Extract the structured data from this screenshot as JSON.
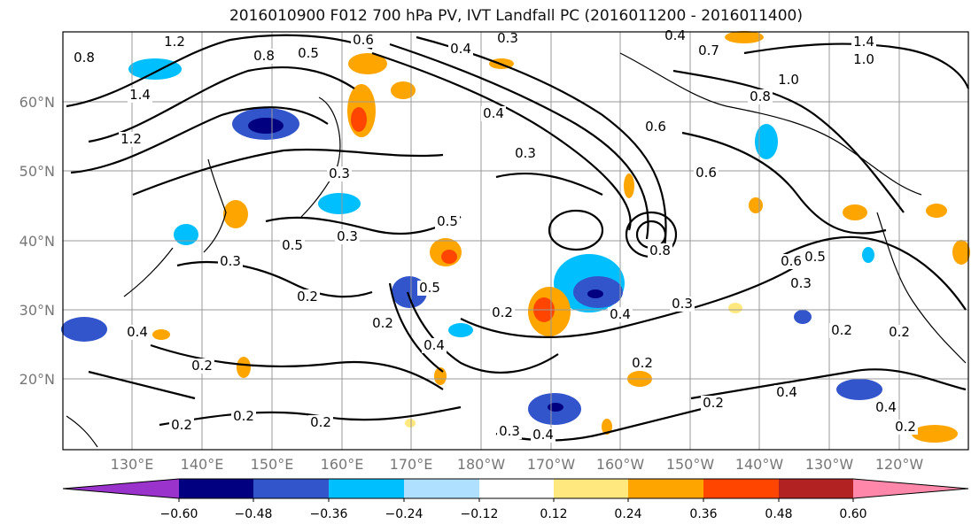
{
  "title": "2016010900 F012 700 hPa PV, IVT Landfall PC (2016011200 - 2016011400)",
  "lat_labels": [
    "60°N",
    "50°N",
    "40°N",
    "30°N",
    "20°N"
  ],
  "lon_labels": [
    "130°E",
    "140°E",
    "150°E",
    "160°E",
    "170°E",
    "180°W",
    "170°W",
    "160°W",
    "150°W",
    "140°W",
    "130°W",
    "120°W"
  ],
  "colorbar": {
    "ticks": [
      "−0.60",
      "−0.48",
      "−0.36",
      "−0.24",
      "−0.12",
      "0.12",
      "0.24",
      "0.36",
      "0.48",
      "0.60"
    ],
    "colors": [
      "#9933cc",
      "#000080",
      "#3355cc",
      "#00bfff",
      "#b0e0ff",
      "#ffffff",
      "#ffe97f",
      "#ffa500",
      "#ff4500",
      "#b22222",
      "#ff88aa"
    ]
  },
  "contour_labels": [
    "1.2",
    "0.8",
    "1.4",
    "1.2",
    "0.5",
    "0.6",
    "0.8",
    "0.3",
    "0.4",
    "0.4",
    "0.7",
    "1.4",
    "1.0",
    "1.0",
    "0.8",
    "0.4",
    "0.6",
    "0.3",
    "0.3",
    "0.5",
    "0.3",
    "0.5",
    "0.3",
    "0.5",
    "0.8",
    "0.6",
    "0.5",
    "0.6",
    "0.3",
    "0.2",
    "0.2",
    "0.4",
    "0.2",
    "0.4",
    "0.3",
    "0.2",
    "0.2",
    "0.4",
    "0.2",
    "0.2",
    "0.2",
    "0.2",
    "0.3",
    "0.4",
    "0.2",
    "0.4",
    "0.4",
    "0.2",
    "0.2"
  ],
  "colors": {
    "frame": "#000000",
    "grid": "#999999",
    "contour": "#000000"
  }
}
